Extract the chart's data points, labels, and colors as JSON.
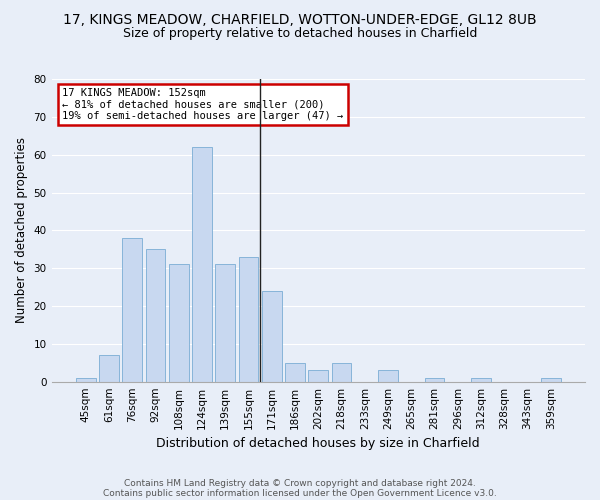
{
  "title": "17, KINGS MEADOW, CHARFIELD, WOTTON-UNDER-EDGE, GL12 8UB",
  "subtitle": "Size of property relative to detached houses in Charfield",
  "xlabel": "Distribution of detached houses by size in Charfield",
  "ylabel": "Number of detached properties",
  "categories": [
    "45sqm",
    "61sqm",
    "76sqm",
    "92sqm",
    "108sqm",
    "124sqm",
    "139sqm",
    "155sqm",
    "171sqm",
    "186sqm",
    "202sqm",
    "218sqm",
    "233sqm",
    "249sqm",
    "265sqm",
    "281sqm",
    "296sqm",
    "312sqm",
    "328sqm",
    "343sqm",
    "359sqm"
  ],
  "values": [
    1,
    7,
    38,
    35,
    31,
    62,
    31,
    33,
    24,
    5,
    3,
    5,
    0,
    3,
    0,
    1,
    0,
    1,
    0,
    0,
    1
  ],
  "bar_color": "#c8d8f0",
  "bar_edge_color": "#7aadd4",
  "vline_color": "#222222",
  "annotation_box_text": "17 KINGS MEADOW: 152sqm\n← 81% of detached houses are smaller (200)\n19% of semi-detached houses are larger (47) →",
  "annotation_box_color": "#ffffff",
  "annotation_box_edge_color": "#cc0000",
  "ylim": [
    0,
    80
  ],
  "yticks": [
    0,
    10,
    20,
    30,
    40,
    50,
    60,
    70,
    80
  ],
  "background_color": "#e8eef8",
  "plot_background_color": "#e8eef8",
  "footer_line1": "Contains HM Land Registry data © Crown copyright and database right 2024.",
  "footer_line2": "Contains public sector information licensed under the Open Government Licence v3.0.",
  "title_fontsize": 10,
  "subtitle_fontsize": 9,
  "xlabel_fontsize": 9,
  "ylabel_fontsize": 8.5,
  "tick_fontsize": 7.5,
  "annotation_fontsize": 7.5,
  "footer_fontsize": 6.5,
  "grid_color": "#ffffff",
  "vline_x_index": 7.5
}
